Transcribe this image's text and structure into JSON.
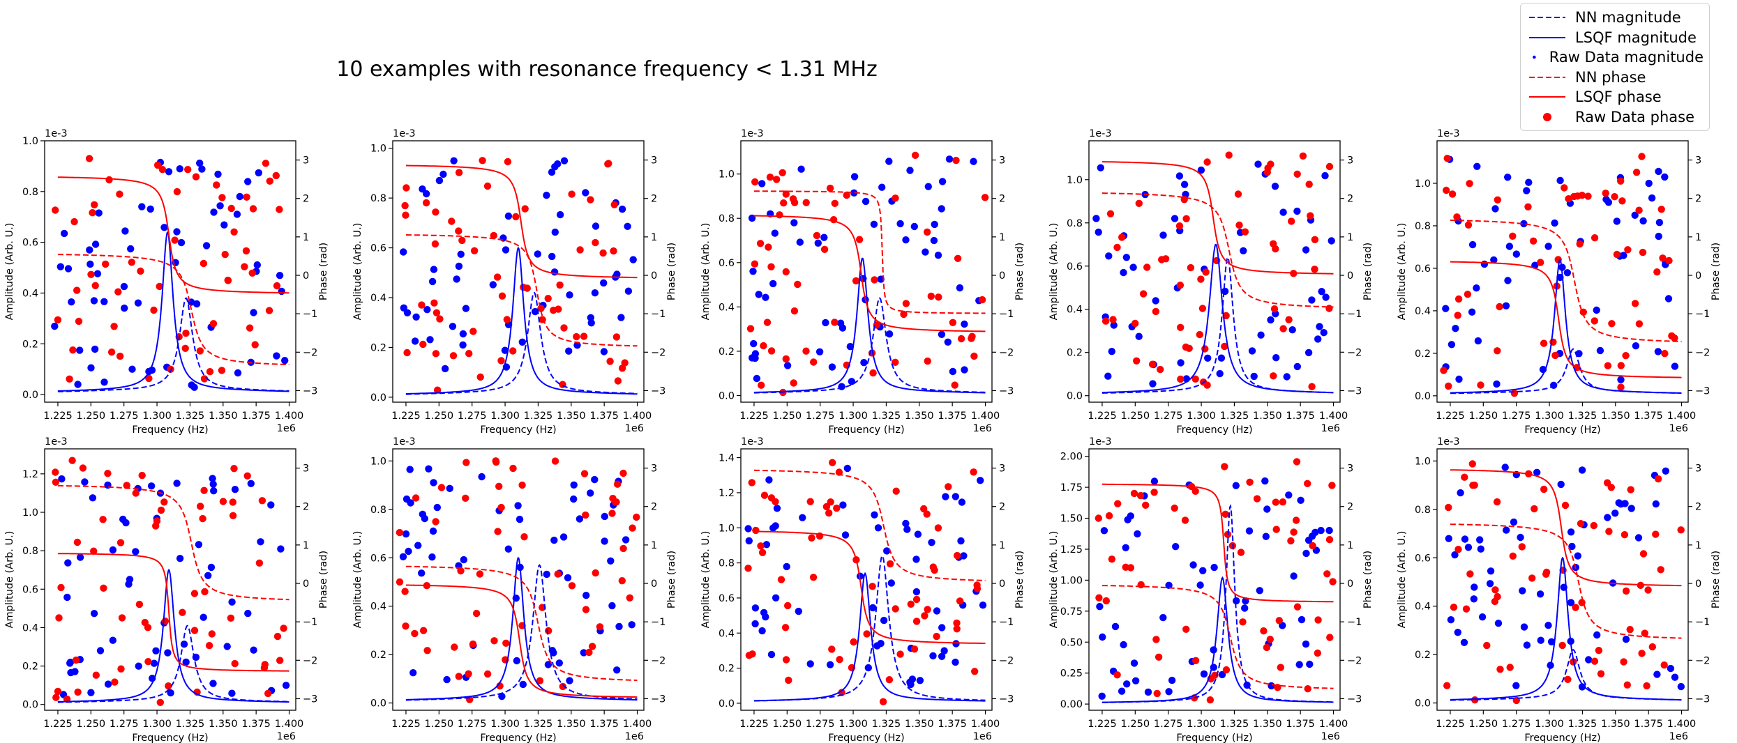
{
  "figure": {
    "title": "10 examples with resonance frequency < 1.31 MHz"
  },
  "legend": {
    "items": [
      {
        "label": "NN magnitude",
        "style": "dashed",
        "color": "#0000ff"
      },
      {
        "label": "LSQF magnitude",
        "style": "solid",
        "color": "#0000ff"
      },
      {
        "label": "Raw Data magnitude",
        "style": "dot",
        "color": "#0000ff"
      },
      {
        "label": "NN phase",
        "style": "dashed",
        "color": "#ff0000"
      },
      {
        "label": "LSQF phase",
        "style": "solid",
        "color": "#ff0000"
      },
      {
        "label": "Raw Data phase",
        "style": "dot",
        "color": "#ff0000"
      }
    ]
  },
  "axes_common": {
    "xlabel": "Frequency (Hz)",
    "ylabel_left": "Amplitude (Arb. U.)",
    "ylabel_right": "Phase (rad)",
    "x_offset_label": "1e6",
    "y_offset_label": "1e-3",
    "xlim": [
      1.215,
      1.405
    ],
    "xticks": [
      "1.225",
      "1.250",
      "1.275",
      "1.300",
      "1.325",
      "1.350",
      "1.375",
      "1.400"
    ],
    "phase_lim": [
      -3.3,
      3.5
    ],
    "phase_ticks": [
      "-3",
      "-2",
      "-1",
      "0",
      "1",
      "2",
      "3"
    ]
  },
  "chart_data": [
    {
      "type": "line",
      "amp_lim": [
        -0.03,
        1.0
      ],
      "amp_ticks": [
        "0.0",
        "0.2",
        "0.4",
        "0.6",
        "0.8",
        "1.0"
      ],
      "nn_amp": {
        "f0": 1.322,
        "peak": 0.36,
        "w": 0.006
      },
      "lsqf_amp": {
        "f0": 1.308,
        "peak": 0.62,
        "w": 0.005
      },
      "nn_phase": {
        "f0": 1.326,
        "low": -2.4,
        "high": 0.6,
        "w": 0.006
      },
      "lsqf_phase": {
        "f0": 1.309,
        "low": -0.5,
        "high": 2.6,
        "w": 0.004
      }
    },
    {
      "type": "line",
      "amp_lim": [
        -0.02,
        1.03
      ],
      "amp_ticks": [
        "0.0",
        "0.2",
        "0.4",
        "0.6",
        "0.8",
        "1.0"
      ],
      "nn_amp": {
        "f0": 1.322,
        "peak": 0.4,
        "w": 0.006
      },
      "lsqf_amp": {
        "f0": 1.31,
        "peak": 0.58,
        "w": 0.005
      },
      "nn_phase": {
        "f0": 1.324,
        "low": -1.9,
        "high": 1.1,
        "w": 0.005
      },
      "lsqf_phase": {
        "f0": 1.312,
        "low": -0.1,
        "high": 2.9,
        "w": 0.004
      }
    },
    {
      "type": "line",
      "amp_lim": [
        -0.03,
        1.15
      ],
      "amp_ticks": [
        "0.0",
        "0.2",
        "0.4",
        "0.6",
        "0.8",
        "1.0"
      ],
      "nn_amp": {
        "f0": 1.32,
        "peak": 0.42,
        "w": 0.006
      },
      "lsqf_amp": {
        "f0": 1.307,
        "peak": 0.6,
        "w": 0.005
      },
      "nn_phase": {
        "f0": 1.322,
        "low": -1.0,
        "high": 2.2,
        "w": 0.001
      },
      "lsqf_phase": {
        "f0": 1.306,
        "low": -1.5,
        "high": 1.6,
        "w": 0.004
      }
    },
    {
      "type": "line",
      "amp_lim": [
        -0.03,
        1.18
      ],
      "amp_ticks": [
        "0.0",
        "0.2",
        "0.4",
        "0.6",
        "0.8",
        "1.0"
      ],
      "nn_amp": {
        "f0": 1.32,
        "peak": 0.62,
        "w": 0.005
      },
      "lsqf_amp": {
        "f0": 1.311,
        "peak": 0.68,
        "w": 0.006
      },
      "nn_phase": {
        "f0": 1.321,
        "low": -0.9,
        "high": 2.2,
        "w": 0.006
      },
      "lsqf_phase": {
        "f0": 1.309,
        "low": 0.0,
        "high": 3.0,
        "w": 0.004
      }
    },
    {
      "type": "line",
      "amp_lim": [
        -0.03,
        1.2
      ],
      "amp_ticks": [
        "0.0",
        "0.2",
        "0.4",
        "0.6",
        "0.8",
        "1.0"
      ],
      "nn_amp": {
        "f0": 1.318,
        "peak": 0.2,
        "w": 0.006
      },
      "lsqf_amp": {
        "f0": 1.308,
        "peak": 0.62,
        "w": 0.005
      },
      "nn_phase": {
        "f0": 1.319,
        "low": -1.8,
        "high": 1.5,
        "w": 0.006
      },
      "lsqf_phase": {
        "f0": 1.307,
        "low": -2.7,
        "high": 0.4,
        "w": 0.004
      }
    },
    {
      "type": "line",
      "amp_lim": [
        -0.03,
        1.33
      ],
      "amp_ticks": [
        "0.0",
        "0.2",
        "0.4",
        "0.6",
        "0.8",
        "1.0",
        "1.2"
      ],
      "nn_amp": {
        "f0": 1.323,
        "peak": 0.39,
        "w": 0.006
      },
      "lsqf_amp": {
        "f0": 1.309,
        "peak": 0.68,
        "w": 0.005
      },
      "nn_phase": {
        "f0": 1.326,
        "low": -0.5,
        "high": 2.6,
        "w": 0.006
      },
      "lsqf_phase": {
        "f0": 1.309,
        "low": -2.3,
        "high": 0.8,
        "w": 0.002
      }
    },
    {
      "type": "line",
      "amp_lim": [
        -0.03,
        1.05
      ],
      "amp_ticks": [
        "0.0",
        "0.2",
        "0.4",
        "0.6",
        "0.8",
        "1.0"
      ],
      "nn_amp": {
        "f0": 1.326,
        "peak": 0.55,
        "w": 0.006
      },
      "lsqf_amp": {
        "f0": 1.31,
        "peak": 0.58,
        "w": 0.005
      },
      "nn_phase": {
        "f0": 1.325,
        "low": -2.6,
        "high": 0.5,
        "w": 0.006
      },
      "lsqf_phase": {
        "f0": 1.311,
        "low": -3.0,
        "high": 0.0,
        "w": 0.004
      }
    },
    {
      "type": "line",
      "amp_lim": [
        -0.04,
        1.45
      ],
      "amp_ticks": [
        "0.0",
        "0.2",
        "0.4",
        "0.6",
        "0.8",
        "1.0",
        "1.2",
        "1.4"
      ],
      "nn_amp": {
        "f0": 1.322,
        "peak": 0.82,
        "w": 0.006
      },
      "lsqf_amp": {
        "f0": 1.309,
        "peak": 0.72,
        "w": 0.005
      },
      "nn_phase": {
        "f0": 1.323,
        "low": 0.0,
        "high": 3.0,
        "w": 0.006
      },
      "lsqf_phase": {
        "f0": 1.306,
        "low": -1.6,
        "high": 1.4,
        "w": 0.004
      }
    },
    {
      "type": "line",
      "amp_lim": [
        -0.05,
        2.06
      ],
      "amp_ticks": [
        "0.00",
        "0.25",
        "0.50",
        "0.75",
        "1.00",
        "1.25",
        "1.50",
        "1.75",
        "2.00"
      ],
      "nn_amp": {
        "f0": 1.322,
        "peak": 1.58,
        "w": 0.004
      },
      "lsqf_amp": {
        "f0": 1.316,
        "peak": 1.0,
        "w": 0.005
      },
      "nn_phase": {
        "f0": 1.322,
        "low": -2.8,
        "high": 0.0,
        "w": 0.006
      },
      "lsqf_phase": {
        "f0": 1.317,
        "low": -0.5,
        "high": 2.6,
        "w": 0.002
      }
    },
    {
      "type": "line",
      "amp_lim": [
        -0.03,
        1.05
      ],
      "amp_ticks": [
        "0.0",
        "0.2",
        "0.4",
        "0.6",
        "0.8",
        "1.0"
      ],
      "nn_amp": {
        "f0": 1.318,
        "peak": 0.2,
        "w": 0.006
      },
      "lsqf_amp": {
        "f0": 1.31,
        "peak": 0.58,
        "w": 0.005
      },
      "nn_phase": {
        "f0": 1.322,
        "low": -1.5,
        "high": 1.6,
        "w": 0.006
      },
      "lsqf_phase": {
        "f0": 1.309,
        "low": -0.1,
        "high": 3.0,
        "w": 0.004
      }
    }
  ]
}
